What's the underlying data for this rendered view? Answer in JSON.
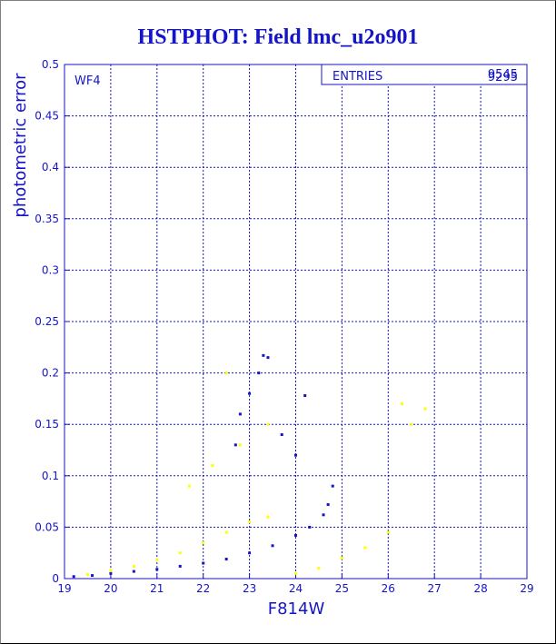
{
  "chart_data": {
    "type": "scatter",
    "title": "HSTPHOT: Field lmc_u2o901",
    "xlabel": "F814W",
    "ylabel": "photometric error",
    "xlim": [
      19,
      29
    ],
    "ylim": [
      0,
      0.5
    ],
    "x_ticks": [
      "19",
      "20",
      "21",
      "22",
      "23",
      "24",
      "25",
      "26",
      "27",
      "28",
      "29"
    ],
    "y_ticks": [
      "0",
      "0.05",
      "0.1",
      "0.15",
      "0.2",
      "0.25",
      "0.3",
      "0.35",
      "0.4",
      "0.45",
      "0.5"
    ],
    "grid": true,
    "panel_label": "WF4",
    "stats_box": {
      "label": "ENTRIES",
      "values": [
        "9545",
        "9295"
      ]
    },
    "series": [
      {
        "color": "#1414c8",
        "marker_size": 2,
        "description_points": [
          [
            19.2,
            0.002
          ],
          [
            19.6,
            0.003
          ],
          [
            20.0,
            0.005
          ],
          [
            20.5,
            0.007
          ],
          [
            21.0,
            0.009
          ],
          [
            21.5,
            0.012
          ],
          [
            22.0,
            0.015
          ],
          [
            22.5,
            0.019
          ],
          [
            23.0,
            0.025
          ],
          [
            23.5,
            0.032
          ],
          [
            24.0,
            0.042
          ],
          [
            24.3,
            0.05
          ],
          [
            24.6,
            0.062
          ],
          [
            24.7,
            0.072
          ],
          [
            22.8,
            0.16
          ],
          [
            23.0,
            0.18
          ],
          [
            23.2,
            0.2
          ],
          [
            23.4,
            0.215
          ],
          [
            23.3,
            0.217
          ],
          [
            22.7,
            0.13
          ],
          [
            23.7,
            0.14
          ],
          [
            24.0,
            0.12
          ],
          [
            24.2,
            0.178
          ],
          [
            24.8,
            0.09
          ]
        ]
      },
      {
        "color": "#ffff00",
        "marker_size": 2,
        "description_points": [
          [
            19.5,
            0.004
          ],
          [
            20.0,
            0.008
          ],
          [
            20.5,
            0.012
          ],
          [
            21.0,
            0.018
          ],
          [
            21.5,
            0.025
          ],
          [
            22.0,
            0.035
          ],
          [
            22.5,
            0.045
          ],
          [
            23.0,
            0.055
          ],
          [
            23.4,
            0.06
          ],
          [
            21.7,
            0.09
          ],
          [
            22.2,
            0.11
          ],
          [
            22.8,
            0.13
          ],
          [
            22.5,
            0.2
          ],
          [
            23.4,
            0.15
          ],
          [
            24.0,
            0.005
          ],
          [
            24.5,
            0.01
          ],
          [
            25.0,
            0.02
          ],
          [
            25.5,
            0.03
          ],
          [
            26.0,
            0.045
          ],
          [
            26.3,
            0.17
          ],
          [
            26.8,
            0.165
          ],
          [
            26.5,
            0.15
          ]
        ]
      }
    ]
  }
}
